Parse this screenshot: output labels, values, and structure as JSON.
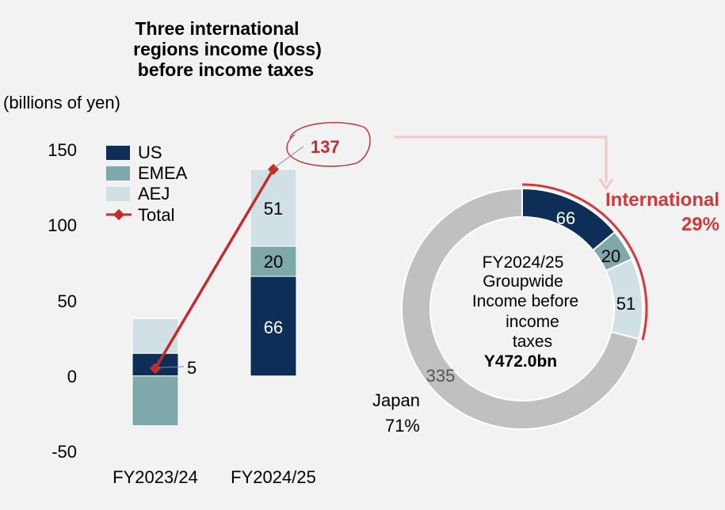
{
  "colors": {
    "us": "#0d2f57",
    "emea": "#7fa8ab",
    "aej": "#d0e0e4",
    "total": "#c42c2c",
    "japan": "#c0c0c0",
    "accent_red": "#d13a3a"
  },
  "chart_data": [
    {
      "type": "bar",
      "stacked": true,
      "title_lines": [
        "Three international",
        "regions income (loss)",
        "before income taxes"
      ],
      "unit_label": "(billions of yen)",
      "categories": [
        "FY2023/24",
        "FY2024/25"
      ],
      "ylim": [
        -50,
        150
      ],
      "yticks": [
        150,
        100,
        50,
        0,
        -50
      ],
      "grid": false,
      "legend": [
        "US",
        "EMEA",
        "AEJ",
        "Total"
      ],
      "series": [
        {
          "name": "US",
          "values": [
            15,
            66
          ],
          "labels": [
            "",
            "66"
          ]
        },
        {
          "name": "EMEA",
          "values": [
            -33,
            20
          ],
          "labels": [
            "",
            "20"
          ]
        },
        {
          "name": "AEJ",
          "values": [
            23,
            51
          ],
          "labels": [
            "",
            "51"
          ]
        }
      ],
      "total": {
        "name": "Total",
        "values": [
          5,
          137
        ],
        "labels": [
          "5",
          "137"
        ]
      }
    },
    {
      "type": "pie",
      "donut": true,
      "center_lines": [
        "FY2024/25",
        "Groupwide",
        "Income before",
        "income",
        "taxes"
      ],
      "center_value": "Y472.0bn",
      "slices": [
        {
          "name": "US",
          "value": 66,
          "label": "66"
        },
        {
          "name": "EMEA",
          "value": 20,
          "label": "20"
        },
        {
          "name": "AEJ",
          "value": 51,
          "label": "51"
        },
        {
          "name": "Japan",
          "value": 335,
          "label": "335"
        }
      ],
      "international": {
        "label": "International",
        "percent": "29%"
      },
      "japan": {
        "label": "Japan",
        "percent": "71%"
      }
    }
  ]
}
